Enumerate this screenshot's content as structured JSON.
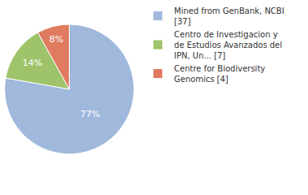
{
  "chart_data": {
    "type": "pie",
    "categories": [
      "Mined from GenBank, NCBI [37]",
      "Centro de Investigacion y de Estudios Avanzados del IPN, Un... [7]",
      "Centre for Biodiversity Genomics [4]"
    ],
    "values": [
      77,
      14,
      8
    ],
    "value_labels": [
      "77%",
      "14%",
      "8%"
    ],
    "colors": [
      "#9fb8dc",
      "#9ec36a",
      "#e07b5f"
    ],
    "data_labels": true,
    "legend": "right"
  }
}
